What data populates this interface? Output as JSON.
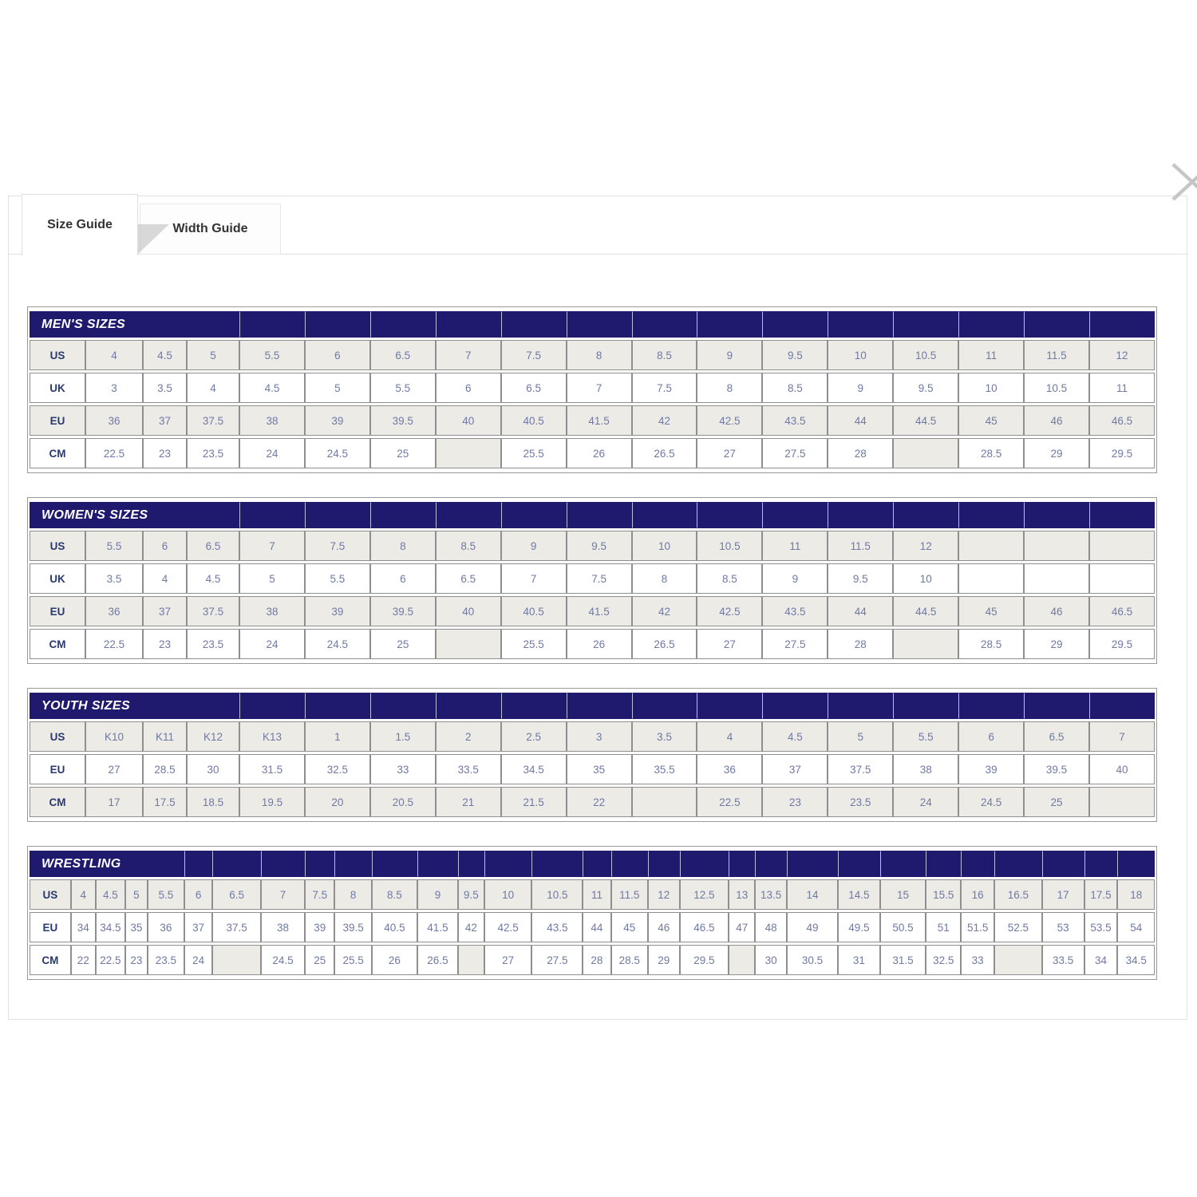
{
  "icons": {
    "close_icon": "✕"
  },
  "colors": {
    "header_bg": "#1f1a6e",
    "header_text": "#ffffff",
    "shaded_row": "#edebe5",
    "value_text": "#6f79a4",
    "label_text": "#2a3a70"
  },
  "tabs": [
    {
      "label": "Size Guide",
      "active": true
    },
    {
      "label": "Width Guide",
      "active": false
    }
  ],
  "tables": [
    {
      "id": "mens",
      "title": "MEN'S SIZES",
      "rows": [
        {
          "label": "US",
          "values": [
            "4",
            "4.5",
            "5",
            "5.5",
            "6",
            "6.5",
            "7",
            "7.5",
            "8",
            "8.5",
            "9",
            "9.5",
            "10",
            "10.5",
            "11",
            "11.5",
            "12"
          ]
        },
        {
          "label": "UK",
          "values": [
            "3",
            "3.5",
            "4",
            "4.5",
            "5",
            "5.5",
            "6",
            "6.5",
            "7",
            "7.5",
            "8",
            "8.5",
            "9",
            "9.5",
            "10",
            "10.5",
            "11"
          ]
        },
        {
          "label": "EU",
          "values": [
            "36",
            "37",
            "37.5",
            "38",
            "39",
            "39.5",
            "40",
            "40.5",
            "41.5",
            "42",
            "42.5",
            "43.5",
            "44",
            "44.5",
            "45",
            "46",
            "46.5"
          ]
        },
        {
          "label": "CM",
          "values": [
            "22.5",
            "23",
            "23.5",
            "24",
            "24.5",
            "25",
            "",
            "25.5",
            "26",
            "26.5",
            "27",
            "27.5",
            "28",
            "",
            "28.5",
            "29",
            "29.5"
          ]
        }
      ]
    },
    {
      "id": "womens",
      "title": "WOMEN'S SIZES",
      "rows": [
        {
          "label": "US",
          "values": [
            "5.5",
            "6",
            "6.5",
            "7",
            "7.5",
            "8",
            "8.5",
            "9",
            "9.5",
            "10",
            "10.5",
            "11",
            "11.5",
            "12",
            "",
            "",
            ""
          ]
        },
        {
          "label": "UK",
          "values": [
            "3.5",
            "4",
            "4.5",
            "5",
            "5.5",
            "6",
            "6.5",
            "7",
            "7.5",
            "8",
            "8.5",
            "9",
            "9.5",
            "10",
            "",
            "",
            ""
          ]
        },
        {
          "label": "EU",
          "values": [
            "36",
            "37",
            "37.5",
            "38",
            "39",
            "39.5",
            "40",
            "40.5",
            "41.5",
            "42",
            "42.5",
            "43.5",
            "44",
            "44.5",
            "45",
            "46",
            "46.5"
          ]
        },
        {
          "label": "CM",
          "values": [
            "22.5",
            "23",
            "23.5",
            "24",
            "24.5",
            "25",
            "",
            "25.5",
            "26",
            "26.5",
            "27",
            "27.5",
            "28",
            "",
            "28.5",
            "29",
            "29.5"
          ]
        }
      ]
    },
    {
      "id": "youth",
      "title": "YOUTH SIZES",
      "rows": [
        {
          "label": "US",
          "values": [
            "K10",
            "K11",
            "K12",
            "K13",
            "1",
            "1.5",
            "2",
            "2.5",
            "3",
            "3.5",
            "4",
            "4.5",
            "5",
            "5.5",
            "6",
            "6.5",
            "7"
          ]
        },
        {
          "label": "EU",
          "values": [
            "27",
            "28.5",
            "30",
            "31.5",
            "32.5",
            "33",
            "33.5",
            "34.5",
            "35",
            "35.5",
            "36",
            "37",
            "37.5",
            "38",
            "39",
            "39.5",
            "40"
          ]
        },
        {
          "label": "CM",
          "values": [
            "17",
            "17.5",
            "18.5",
            "19.5",
            "20",
            "20.5",
            "21",
            "21.5",
            "22",
            "",
            "22.5",
            "23",
            "23.5",
            "24",
            "24.5",
            "25",
            ""
          ]
        }
      ]
    },
    {
      "id": "wrestling",
      "title": "WRESTLING",
      "rows": [
        {
          "label": "US",
          "values": [
            "4",
            "4.5",
            "5",
            "5.5",
            "6",
            "6.5",
            "7",
            "7.5",
            "8",
            "8.5",
            "9",
            "9.5",
            "10",
            "10.5",
            "11",
            "11.5",
            "12",
            "12.5",
            "13",
            "13.5",
            "14",
            "14.5",
            "15",
            "15.5",
            "16",
            "16.5",
            "17",
            "17.5",
            "18"
          ]
        },
        {
          "label": "EU",
          "values": [
            "34",
            "34.5",
            "35",
            "36",
            "37",
            "37.5",
            "38",
            "39",
            "39.5",
            "40.5",
            "41.5",
            "42",
            "42.5",
            "43.5",
            "44",
            "45",
            "46",
            "46.5",
            "47",
            "48",
            "49",
            "49.5",
            "50.5",
            "51",
            "51.5",
            "52.5",
            "53",
            "53.5",
            "54"
          ]
        },
        {
          "label": "CM",
          "values": [
            "22",
            "22.5",
            "23",
            "23.5",
            "24",
            "",
            "24.5",
            "25",
            "25.5",
            "26",
            "26.5",
            "",
            "27",
            "27.5",
            "28",
            "28.5",
            "29",
            "29.5",
            "",
            "30",
            "30.5",
            "31",
            "31.5",
            "32.5",
            "33",
            "",
            "33.5",
            "34",
            "34.5"
          ]
        }
      ]
    }
  ]
}
